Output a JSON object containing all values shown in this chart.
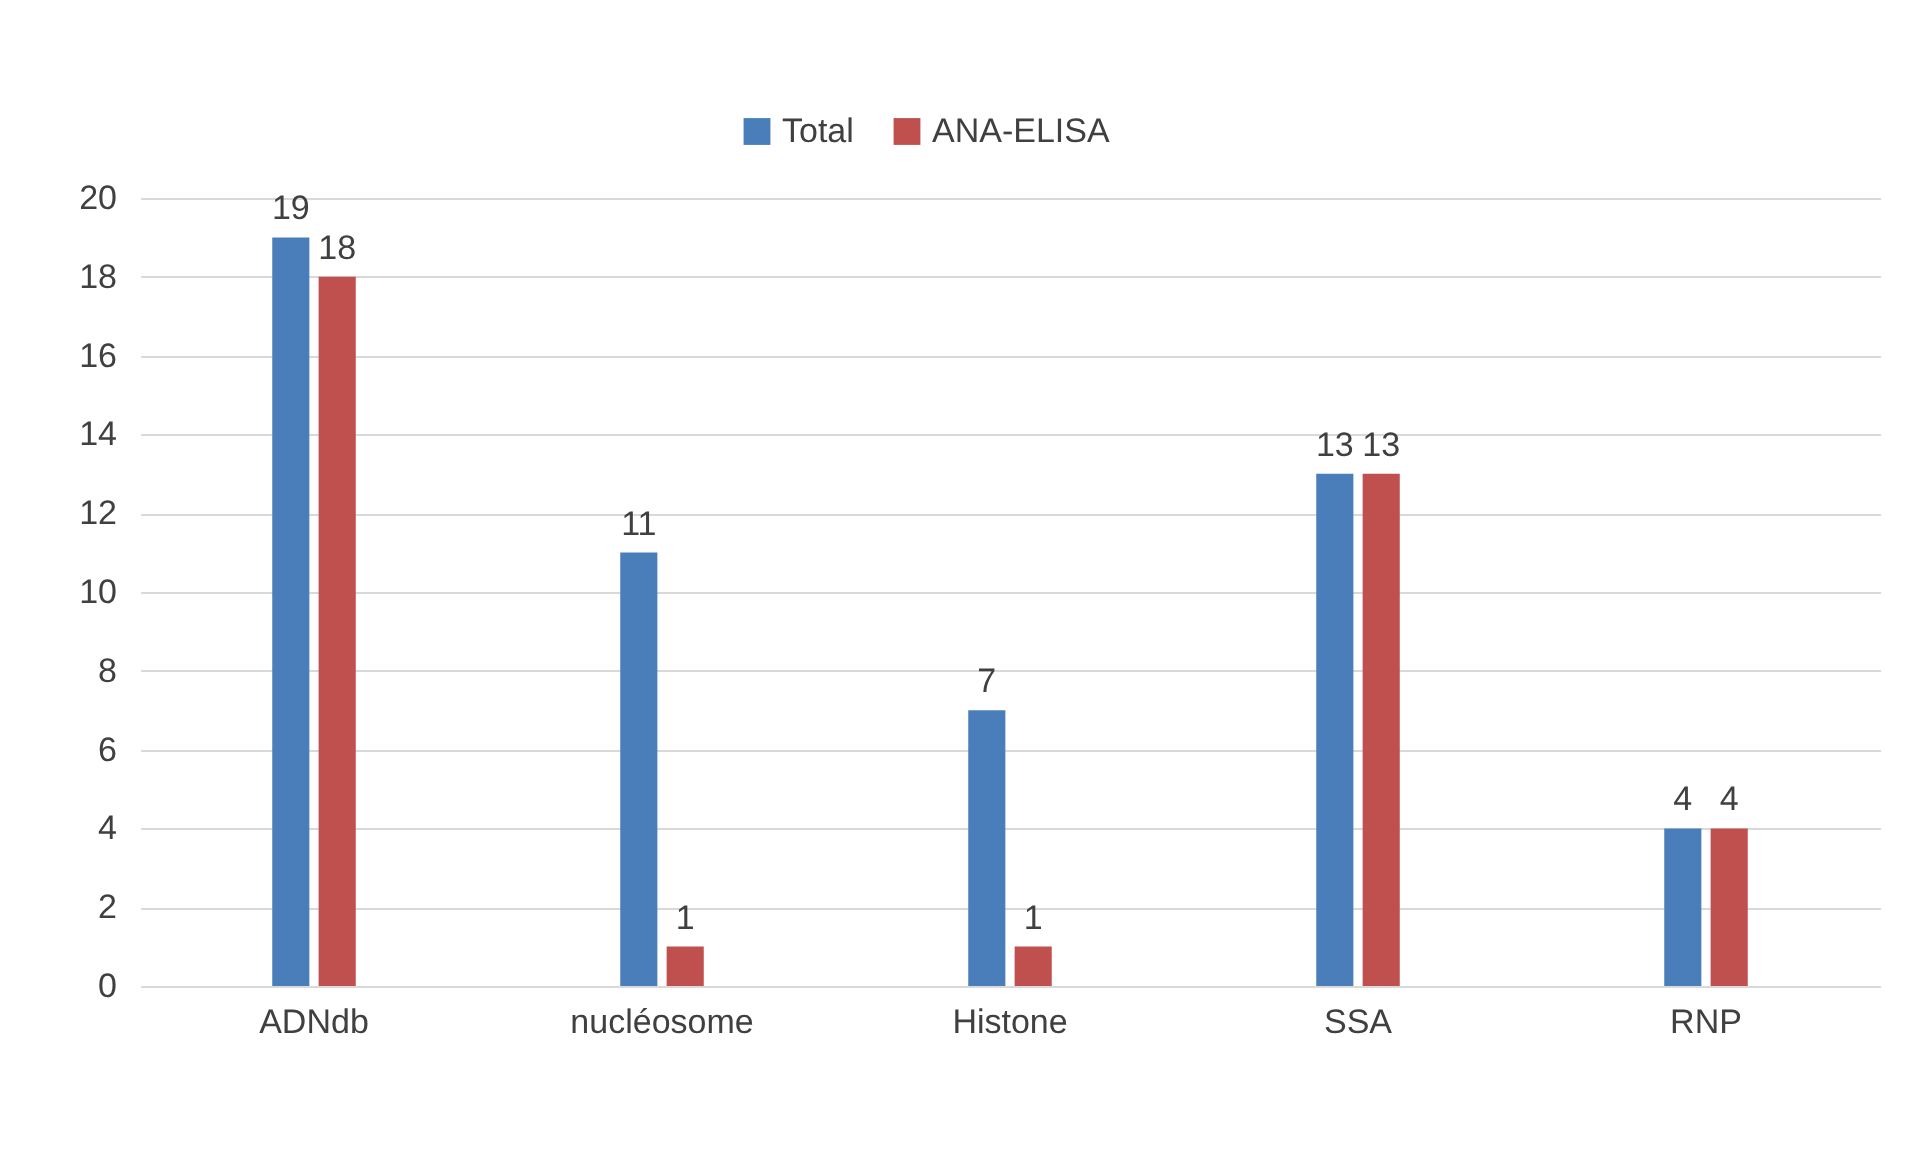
{
  "chart_data": {
    "type": "bar",
    "categories": [
      "ADNdb",
      "nucléosome",
      "Histone",
      "SSA",
      "RNP"
    ],
    "series": [
      {
        "name": "Total",
        "color": "#4a7ebb",
        "values": [
          19,
          11,
          7,
          13,
          4
        ]
      },
      {
        "name": "ANA-ELISA",
        "color": "#c0504d",
        "values": [
          18,
          1,
          1,
          13,
          4
        ]
      }
    ],
    "ylim": [
      0,
      20
    ],
    "yticks": [
      0,
      2,
      4,
      6,
      8,
      10,
      12,
      14,
      16,
      18,
      20
    ],
    "grid": "y",
    "legend": "top",
    "data_labels": true
  }
}
